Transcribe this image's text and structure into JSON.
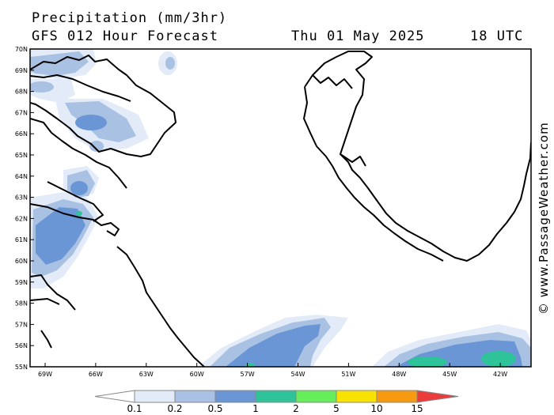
{
  "header": {
    "title": "Precipitation (mm/3hr)",
    "subtitle": "GFS 012 Hour Forecast",
    "date": "Thu 01 May 2025",
    "time": "18 UTC"
  },
  "credit": "© www.PassageWeather.com",
  "axes": {
    "lat_labels": [
      "70N",
      "69N",
      "68N",
      "67N",
      "66N",
      "65N",
      "64N",
      "63N",
      "62N",
      "61N",
      "60N",
      "59N",
      "58N",
      "57N",
      "56N",
      "55N"
    ],
    "lon_labels": [
      "69W",
      "66W",
      "63W",
      "60W",
      "57W",
      "54W",
      "51W",
      "48W",
      "45W",
      "42W"
    ]
  },
  "legend": {
    "levels": [
      "0.1",
      "0.2",
      "0.5",
      "1",
      "2",
      "5",
      "10",
      "15"
    ],
    "colors": [
      "#ffffff",
      "#e2ebf7",
      "#a9c1e2",
      "#6b96d6",
      "#2fc39a",
      "#66ee5a",
      "#f8e300",
      "#f79a10",
      "#ec3b3b"
    ]
  }
}
